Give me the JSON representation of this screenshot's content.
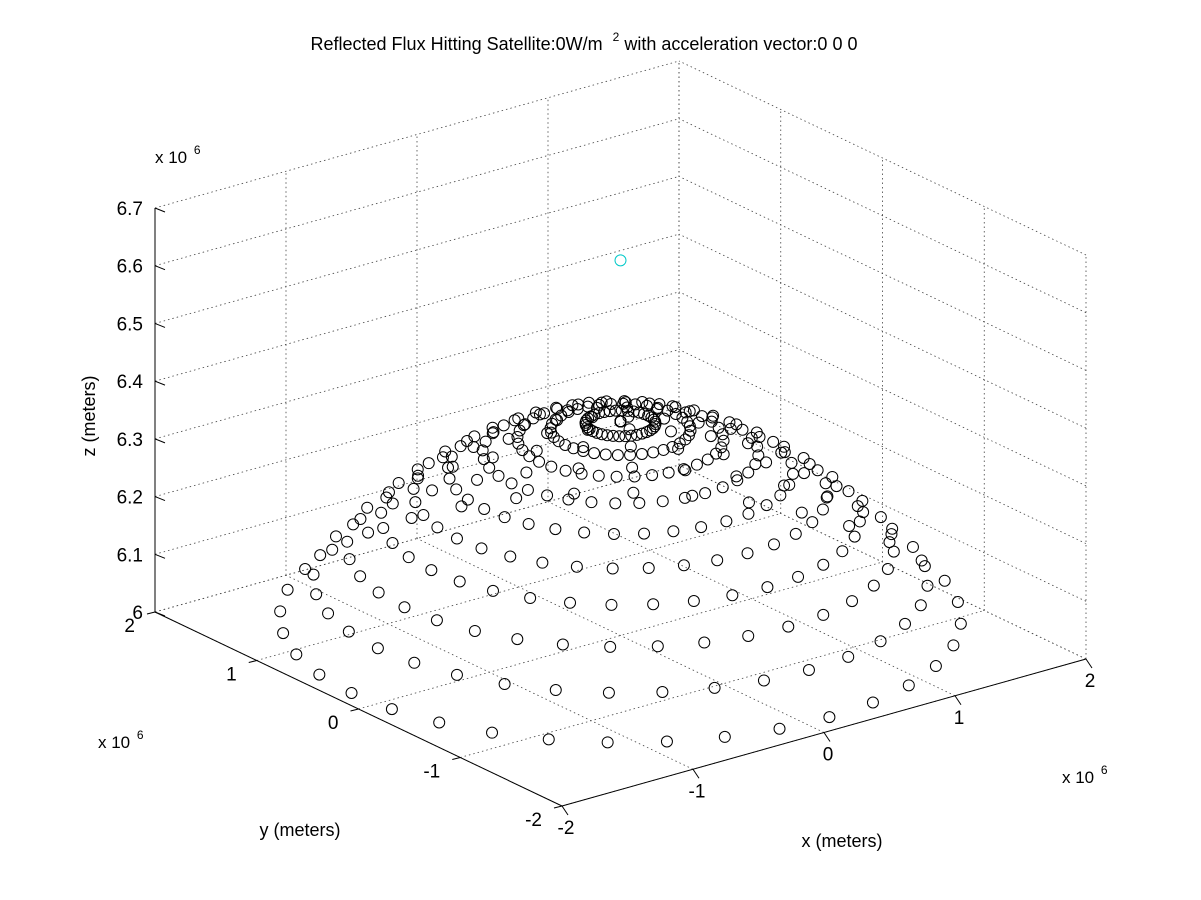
{
  "chart_data": {
    "type": "scatter",
    "title": {
      "prefix": "Reflected Flux Hitting Satellite:0W/m",
      "superscript": "2",
      "suffix": " with acceleration vector:0  0  0"
    },
    "xlabel": "x (meters)",
    "ylabel": "y (meters)",
    "zlabel": "z (meters)",
    "x_multiplier": {
      "base": "x 10",
      "exp": "6"
    },
    "y_multiplier": {
      "base": "x 10",
      "exp": "6"
    },
    "z_multiplier": {
      "base": "x 10",
      "exp": "6"
    },
    "xlim": [
      -2,
      2
    ],
    "ylim": [
      -2,
      2
    ],
    "zlim": [
      6.0,
      6.7
    ],
    "x_ticks": [
      "-2",
      "-1",
      "0",
      "1",
      "2"
    ],
    "y_ticks": [
      "-2",
      "-1",
      "0",
      "1",
      "2"
    ],
    "z_ticks": [
      "6",
      "6.1",
      "6.2",
      "6.3",
      "6.4",
      "6.5",
      "6.6",
      "6.7"
    ],
    "grid": true,
    "marker": "circle",
    "series": [
      {
        "color": "#000000",
        "shape": "spherical cap grid of surface points",
        "cap_ring_angles_deg": [
          0,
          1.9,
          3.8,
          5.6,
          7.5,
          9.4,
          11.3,
          13.1,
          15.0,
          16.9,
          18.8
        ],
        "meridian_step_deg": 10,
        "radius_m": 6371000,
        "apex": [
          0,
          0,
          6371000
        ]
      },
      {
        "color": "#00c8c8",
        "points": [
          [
            0,
            0,
            6650000
          ]
        ]
      }
    ]
  }
}
